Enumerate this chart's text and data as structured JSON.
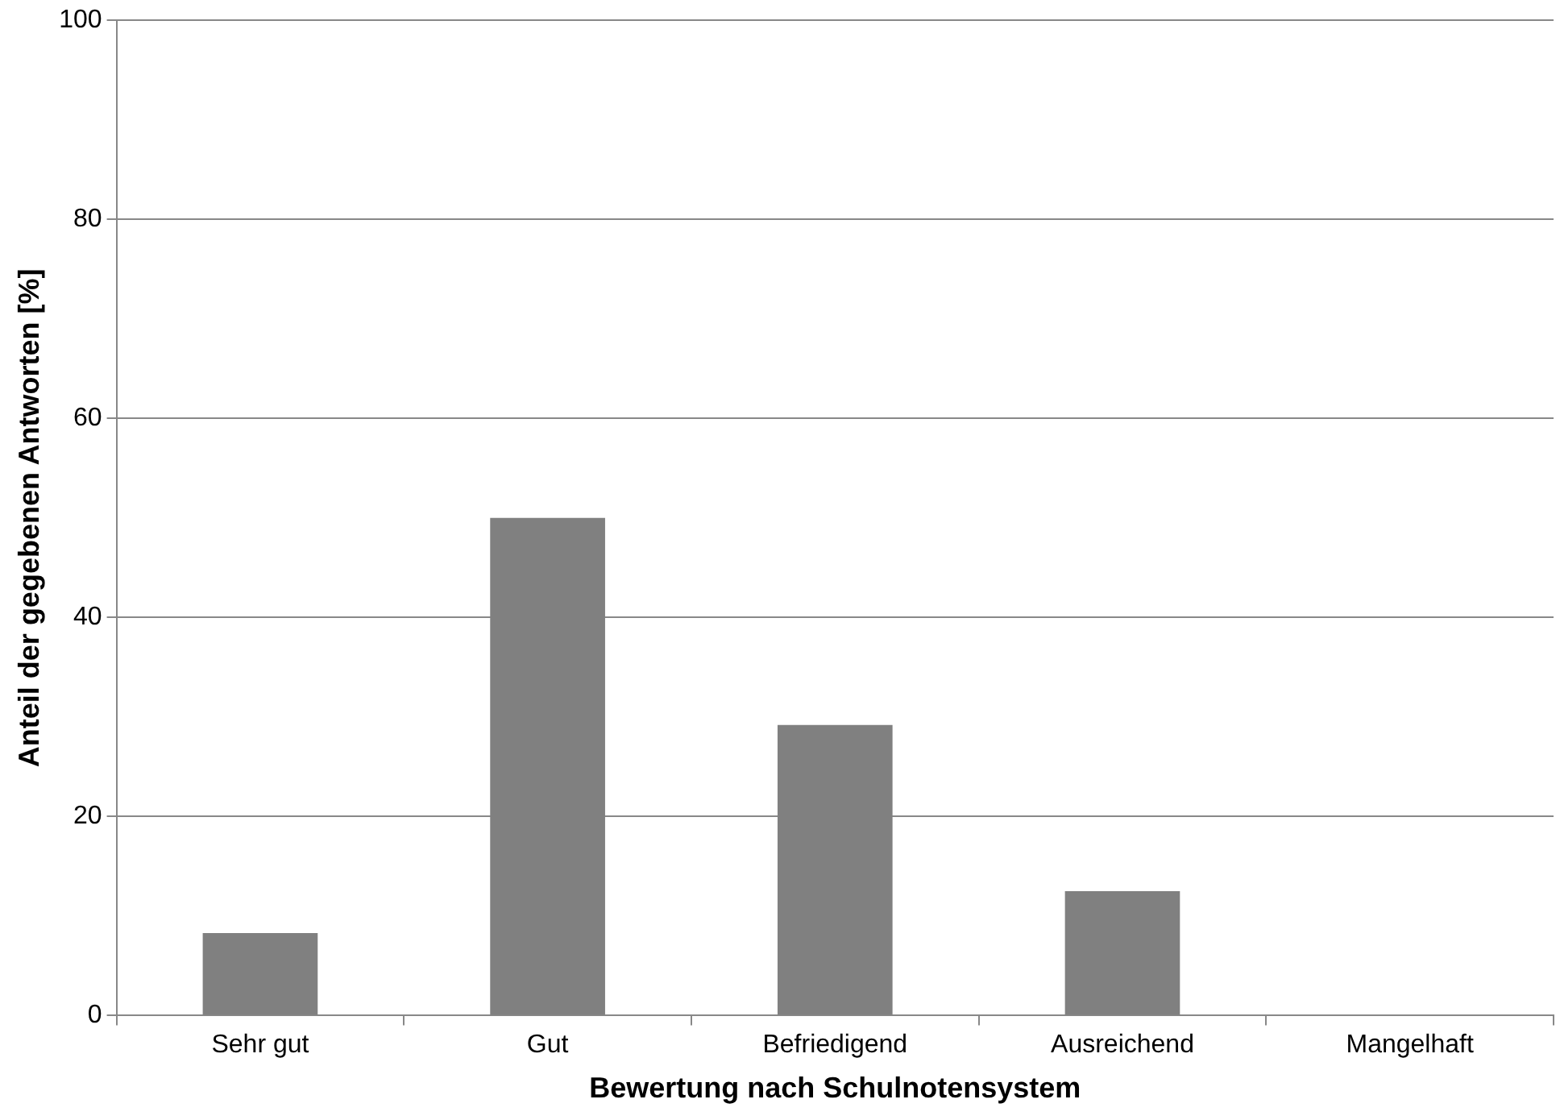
{
  "chart_data": {
    "type": "bar",
    "xlabel": "Bewertung nach Schulnotensystem",
    "ylabel": "Anteil der gegebenen Antworten [%]",
    "categories": [
      "Sehr gut",
      "Gut",
      "Befriedigend",
      "Ausreichend",
      "Mangelhaft"
    ],
    "values": [
      8.3,
      50,
      29.2,
      12.5,
      0
    ],
    "color": "#808080",
    "ylim": [
      0,
      100
    ],
    "yticks": [
      0,
      20,
      40,
      60,
      80,
      100
    ],
    "grid": "y",
    "legend": false
  }
}
